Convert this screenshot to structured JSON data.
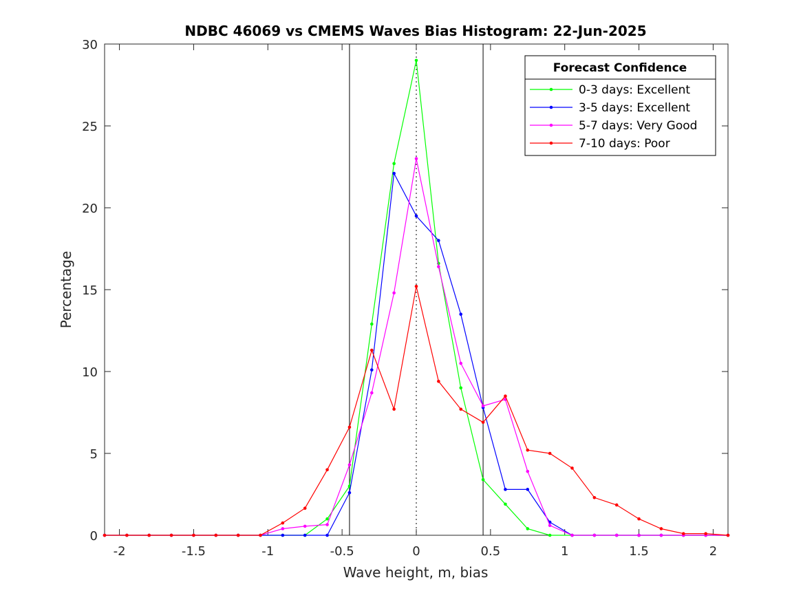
{
  "chart_data": {
    "type": "line",
    "title": "NDBC 46069 vs CMEMS Waves Bias Histogram: 22-Jun-2025",
    "xlabel": "Wave height, m, bias",
    "ylabel": "Percentage",
    "xlim": [
      -2.1,
      2.1
    ],
    "ylim": [
      0,
      30
    ],
    "xticks": [
      -2,
      -1.5,
      -1,
      -0.5,
      0,
      0.5,
      1,
      1.5,
      2
    ],
    "xtick_labels": [
      "-2",
      "-1.5",
      "-1",
      "-0.5",
      "0",
      "0.5",
      "1",
      "1.5",
      "2"
    ],
    "yticks": [
      0,
      5,
      10,
      15,
      20,
      25,
      30
    ],
    "ytick_labels": [
      "0",
      "5",
      "10",
      "15",
      "20",
      "25",
      "30"
    ],
    "vertical_lines": [
      {
        "x": -0.45,
        "style": "solid"
      },
      {
        "x": 0,
        "style": "dotted"
      },
      {
        "x": 0.45,
        "style": "solid"
      }
    ],
    "legend_title": "Forecast Confidence",
    "legend_position": "top-right",
    "x": [
      -2.1,
      -1.95,
      -1.8,
      -1.65,
      -1.5,
      -1.35,
      -1.2,
      -1.05,
      -0.9,
      -0.75,
      -0.6,
      -0.45,
      -0.3,
      -0.15,
      0,
      0.15,
      0.3,
      0.45,
      0.6,
      0.75,
      0.9,
      1.05,
      1.2,
      1.35,
      1.5,
      1.65,
      1.8,
      1.95,
      2.1
    ],
    "series": [
      {
        "name": "0-3 days: Excellent",
        "color": "#00ff00",
        "values": [
          0,
          0,
          0,
          0,
          0,
          0,
          0,
          0,
          0,
          0,
          1.0,
          3.0,
          12.9,
          22.7,
          29.0,
          16.6,
          9.0,
          3.4,
          1.9,
          0.4,
          0,
          0,
          0,
          0,
          0,
          0,
          0,
          0,
          0
        ]
      },
      {
        "name": "3-5 days: Excellent",
        "color": "#0000ff",
        "values": [
          0,
          0,
          0,
          0,
          0,
          0,
          0,
          0,
          0,
          0,
          0,
          2.6,
          10.1,
          22.1,
          19.5,
          18.0,
          13.5,
          7.8,
          2.8,
          2.8,
          0.8,
          0,
          0,
          0,
          0,
          0,
          0,
          0,
          0
        ]
      },
      {
        "name": "5-7 days: Very Good",
        "color": "#ff00ff",
        "values": [
          0,
          0,
          0,
          0,
          0,
          0,
          0,
          0,
          0.4,
          0.55,
          0.65,
          4.3,
          8.7,
          14.8,
          23.0,
          16.4,
          10.5,
          7.9,
          8.3,
          3.9,
          0.6,
          0,
          0,
          0,
          0,
          0,
          0,
          0,
          0
        ]
      },
      {
        "name": "7-10 days: Poor",
        "color": "#ff0000",
        "values": [
          0,
          0,
          0,
          0,
          0,
          0,
          0,
          0,
          0.75,
          1.65,
          4.0,
          6.6,
          11.3,
          7.7,
          15.2,
          9.4,
          7.7,
          6.9,
          8.5,
          5.2,
          5.0,
          4.1,
          2.3,
          1.85,
          1.0,
          0.4,
          0.1,
          0.1,
          0
        ]
      }
    ]
  }
}
